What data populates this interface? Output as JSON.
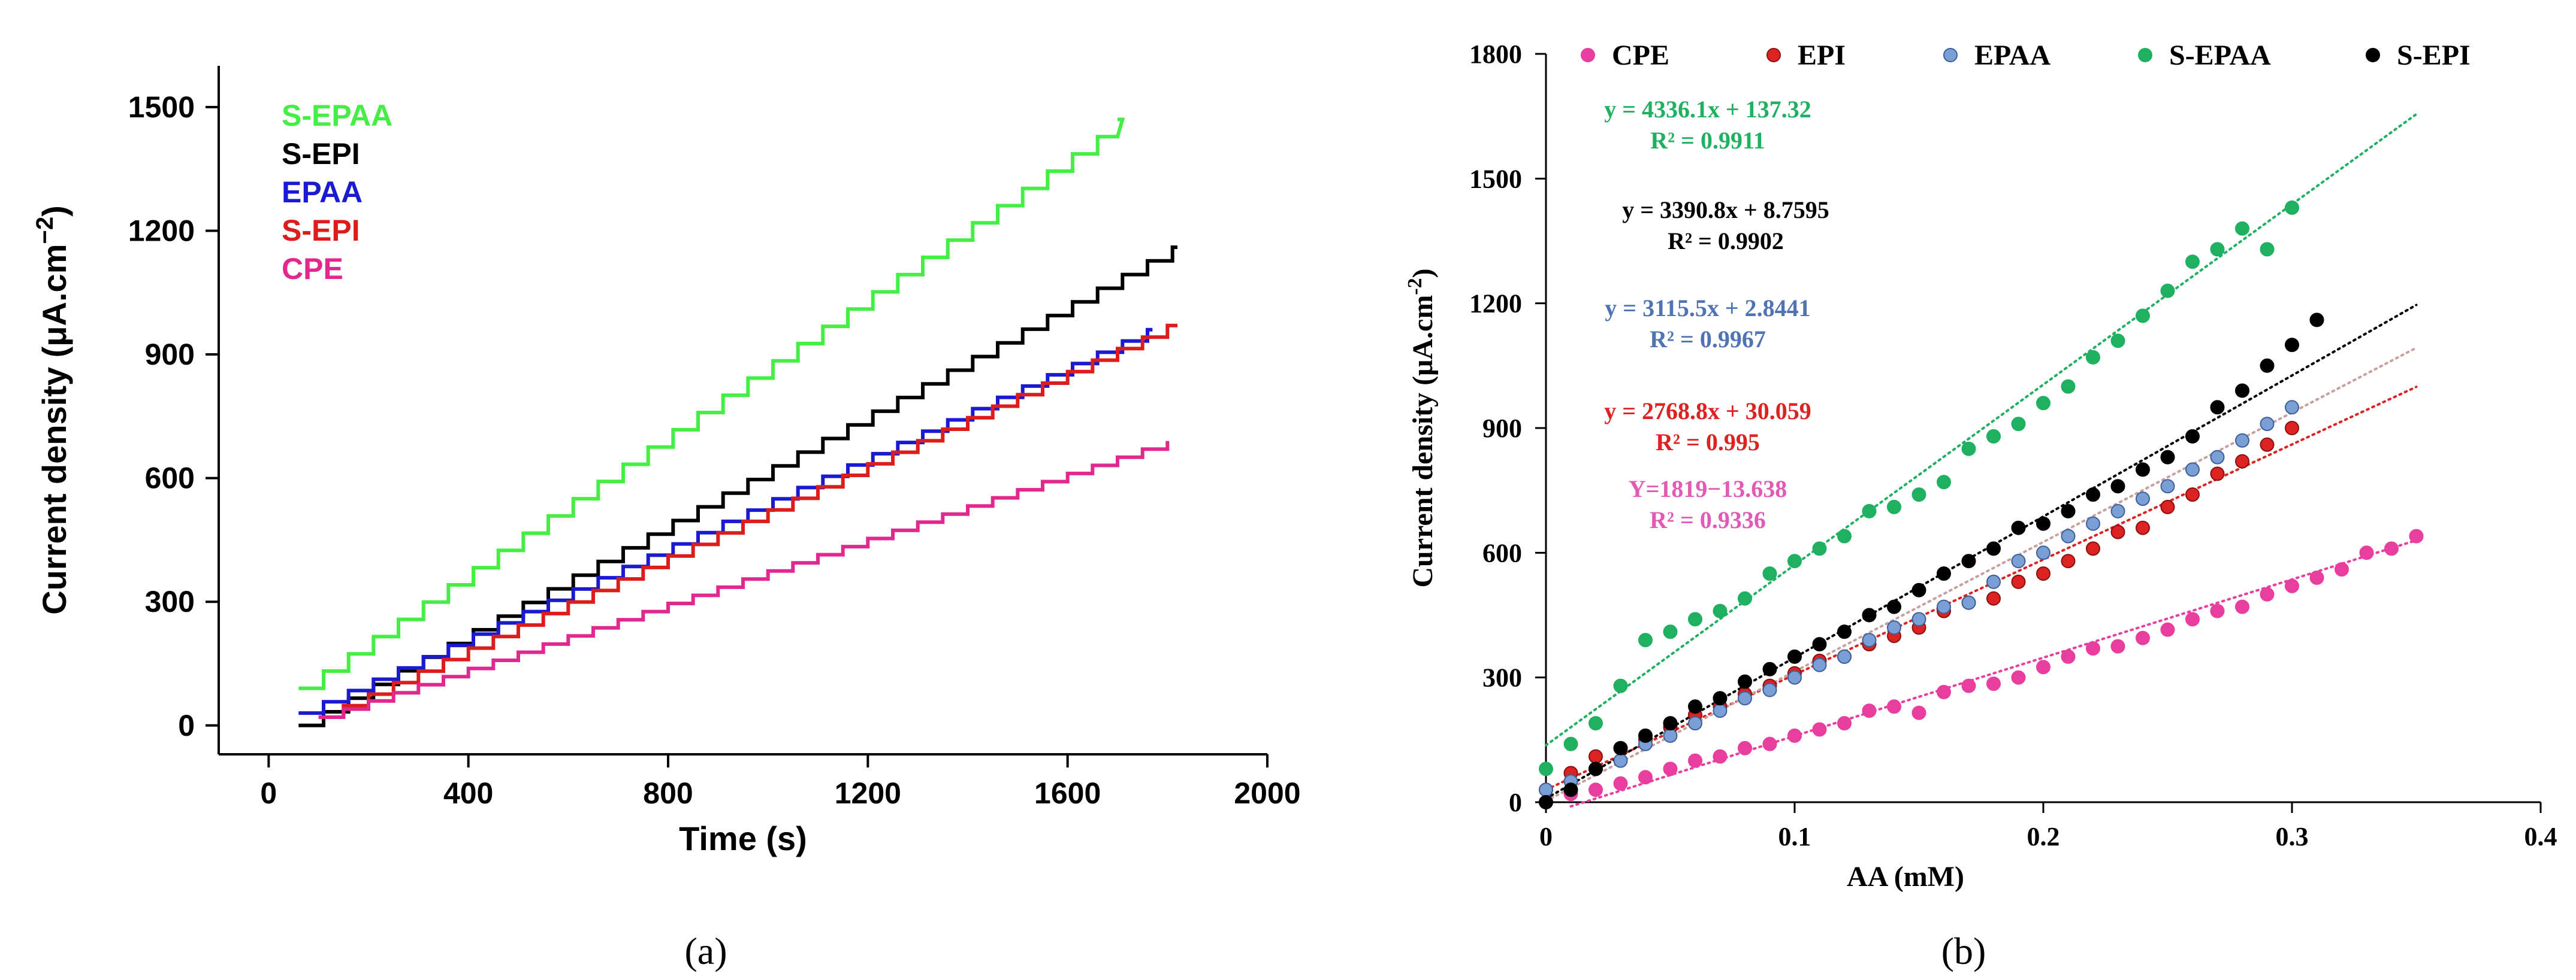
{
  "panel_labels": {
    "a": "(a)",
    "b": "(b)"
  },
  "chart_data": [
    {
      "type": "line",
      "step": true,
      "xlabel": "Time (s)",
      "ylabel_main": "Current density (μA.cm",
      "ylabel_sup": "−2",
      "ylabel_close": ")",
      "xlim": [
        -100,
        2000
      ],
      "ylim": [
        -70,
        1600
      ],
      "xticks": [
        0,
        400,
        800,
        1200,
        1600,
        2000
      ],
      "yticks": [
        0,
        300,
        600,
        900,
        1200,
        1500
      ],
      "legend_placement": "top-left",
      "grid": false,
      "series": [
        {
          "name": "S-EPAA",
          "color": "#44ee44",
          "t_start": 60,
          "t_end": 1700,
          "step_seconds": 50,
          "y_start": 90,
          "y_end": 1470
        },
        {
          "name": "S-EPI",
          "color": "#000000",
          "t_start": 60,
          "t_end": 1820,
          "step_seconds": 50,
          "y_start": 0,
          "y_end": 1160
        },
        {
          "name": "EPAA",
          "color": "#1a1ad0",
          "t_start": 60,
          "t_end": 1770,
          "step_seconds": 50,
          "y_start": 30,
          "y_end": 960
        },
        {
          "name": "S-EPI",
          "color": "#dd1c1c",
          "t_start": 100,
          "t_end": 1820,
          "step_seconds": 50,
          "y_start": 20,
          "y_end": 970
        },
        {
          "name": "CPE",
          "color": "#e0288f",
          "t_start": 100,
          "t_end": 1800,
          "step_seconds": 50,
          "y_start": 20,
          "y_end": 690
        }
      ]
    },
    {
      "type": "scatter",
      "xlabel": "AA (mM)",
      "ylabel_main": "Current density (μA.cm",
      "ylabel_sup": "-2",
      "ylabel_close": ")",
      "xlim": [
        0,
        0.4
      ],
      "ylim": [
        0,
        1800
      ],
      "xticks": [
        0,
        0.1,
        0.2,
        0.3,
        0.4
      ],
      "xtick_labels": [
        "0",
        "0.1",
        "0.2",
        "0.3",
        "0.4"
      ],
      "yticks": [
        0,
        300,
        600,
        900,
        1200,
        1500,
        1800
      ],
      "legend_placement": "top",
      "grid": false,
      "series": [
        {
          "name": "CPE",
          "color": "#e83e9f",
          "edge": "#e83e9f",
          "trend_color": "#e83e9f",
          "equation": "Y=1819−13.638",
          "r2": "R² = 0.9336",
          "trend": [
            [
              0.01,
              -10
            ],
            [
              0.35,
              630
            ]
          ],
          "x": [
            0,
            0.01,
            0.02,
            0.03,
            0.04,
            0.05,
            0.06,
            0.07,
            0.08,
            0.09,
            0.1,
            0.11,
            0.12,
            0.13,
            0.14,
            0.15,
            0.16,
            0.17,
            0.18,
            0.19,
            0.2,
            0.21,
            0.22,
            0.23,
            0.24,
            0.25,
            0.26,
            0.27,
            0.28,
            0.29,
            0.3,
            0.31,
            0.32,
            0.33,
            0.34,
            0.35
          ],
          "y": [
            0,
            20,
            30,
            45,
            60,
            80,
            100,
            110,
            130,
            140,
            160,
            175,
            190,
            220,
            230,
            215,
            265,
            280,
            285,
            300,
            325,
            350,
            370,
            375,
            395,
            415,
            440,
            460,
            470,
            500,
            520,
            540,
            560,
            600,
            610,
            640
          ]
        },
        {
          "name": "EPI",
          "color": "#dd2222",
          "edge": "#8a1010",
          "trend_color": "#dd2222",
          "equation": "y = 2768.8x + 30.059",
          "r2": "R² = 0.995",
          "trend": [
            [
              0,
              30
            ],
            [
              0.35,
              999
            ]
          ],
          "x": [
            0,
            0.01,
            0.02,
            0.03,
            0.04,
            0.05,
            0.06,
            0.07,
            0.08,
            0.09,
            0.1,
            0.11,
            0.12,
            0.13,
            0.14,
            0.15,
            0.16,
            0.17,
            0.18,
            0.19,
            0.2,
            0.21,
            0.22,
            0.23,
            0.24,
            0.25,
            0.26,
            0.27,
            0.28,
            0.29,
            0.3
          ],
          "y": [
            30,
            70,
            110,
            130,
            150,
            180,
            210,
            230,
            260,
            280,
            310,
            340,
            350,
            380,
            400,
            420,
            460,
            480,
            490,
            530,
            550,
            580,
            610,
            650,
            660,
            710,
            740,
            790,
            820,
            860,
            900
          ]
        },
        {
          "name": "EPAA",
          "color": "#7a9ed6",
          "edge": "#3d5f99",
          "trend_color": "#c8a0a0",
          "equation": "y = 3115.5x + 2.8441",
          "r2": "R² = 0.9967",
          "trend": [
            [
              0,
              3
            ],
            [
              0.35,
              1093
            ]
          ],
          "x": [
            0,
            0.01,
            0.02,
            0.03,
            0.04,
            0.05,
            0.06,
            0.07,
            0.08,
            0.09,
            0.1,
            0.11,
            0.12,
            0.13,
            0.14,
            0.15,
            0.16,
            0.17,
            0.18,
            0.19,
            0.2,
            0.21,
            0.22,
            0.23,
            0.24,
            0.25,
            0.26,
            0.27,
            0.28,
            0.29,
            0.3
          ],
          "y": [
            30,
            50,
            80,
            100,
            140,
            160,
            190,
            220,
            250,
            270,
            300,
            330,
            350,
            390,
            420,
            440,
            470,
            480,
            530,
            580,
            600,
            640,
            670,
            700,
            730,
            760,
            800,
            830,
            870,
            910,
            950
          ]
        },
        {
          "name": "S-EPAA",
          "color": "#1fb061",
          "edge": "#1fb061",
          "trend_color": "#1fb061",
          "equation": "y = 4336.1x + 137.32",
          "r2": "R² = 0.9911",
          "trend": [
            [
              0,
              137
            ],
            [
              0.35,
              1655
            ]
          ],
          "x": [
            0,
            0.01,
            0.02,
            0.03,
            0.04,
            0.05,
            0.06,
            0.07,
            0.08,
            0.09,
            0.1,
            0.11,
            0.12,
            0.13,
            0.14,
            0.15,
            0.16,
            0.17,
            0.18,
            0.19,
            0.2,
            0.21,
            0.22,
            0.23,
            0.24,
            0.25,
            0.26,
            0.27,
            0.28,
            0.29,
            0.3
          ],
          "y": [
            80,
            140,
            190,
            280,
            390,
            410,
            440,
            460,
            490,
            550,
            580,
            610,
            640,
            700,
            710,
            740,
            770,
            850,
            880,
            910,
            960,
            1000,
            1070,
            1110,
            1170,
            1230,
            1300,
            1330,
            1380,
            1330,
            1430
          ]
        },
        {
          "name": "S-EPI",
          "color": "#000000",
          "edge": "#000000",
          "trend_color": "#000000",
          "equation": "y = 3390.8x + 8.7595",
          "r2": "R² = 0.9902",
          "trend": [
            [
              0,
              8.8
            ],
            [
              0.35,
              1196
            ]
          ],
          "x": [
            0,
            0.01,
            0.02,
            0.03,
            0.04,
            0.05,
            0.06,
            0.07,
            0.08,
            0.09,
            0.1,
            0.11,
            0.12,
            0.13,
            0.14,
            0.15,
            0.16,
            0.17,
            0.18,
            0.19,
            0.2,
            0.21,
            0.22,
            0.23,
            0.24,
            0.25,
            0.26,
            0.27,
            0.28,
            0.29,
            0.3,
            0.31
          ],
          "y": [
            0,
            30,
            80,
            130,
            160,
            190,
            230,
            250,
            290,
            320,
            350,
            380,
            410,
            450,
            470,
            510,
            550,
            580,
            610,
            660,
            670,
            700,
            740,
            760,
            800,
            830,
            880,
            950,
            990,
            1050,
            1100,
            1160
          ]
        }
      ]
    }
  ]
}
